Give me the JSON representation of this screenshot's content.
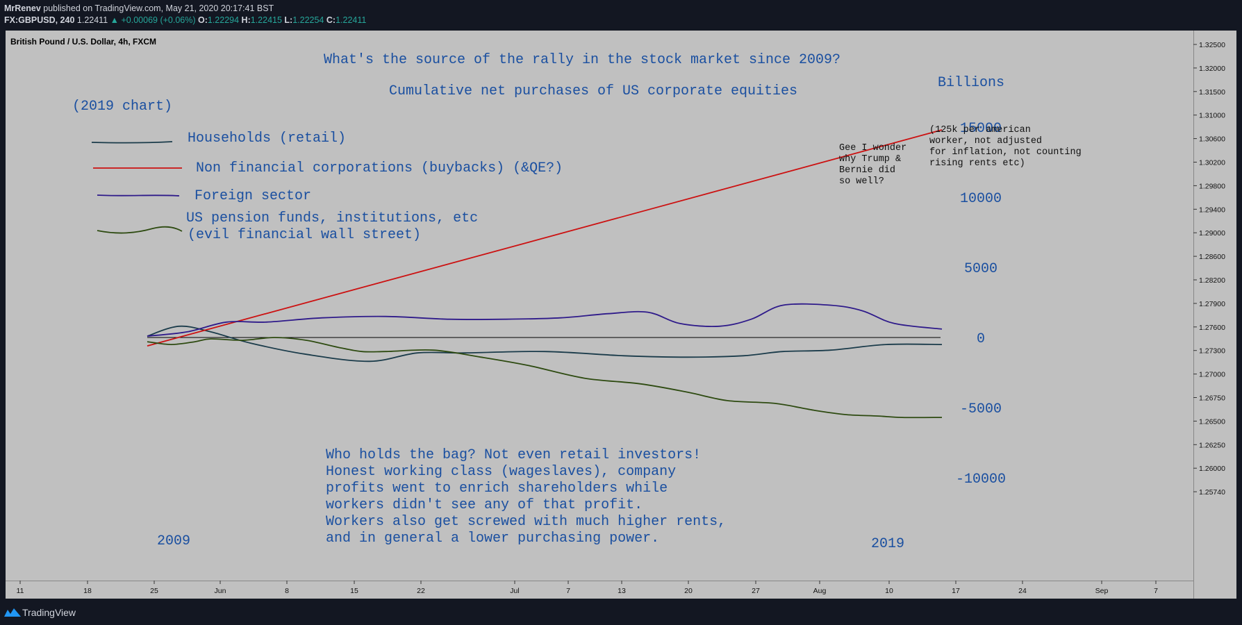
{
  "header": {
    "author": "MrRenev",
    "published": " published on TradingView.com, May 21, 2020 20:17:41 BST",
    "symbol": "FX:GBPUSD, 240",
    "price": " 1.22411",
    "change": "▲ +0.00069 (+0.06%)",
    "o_label": " O:",
    "o_val": "1.22294",
    "h_label": " H:",
    "h_val": "1.22415",
    "l_label": " L:",
    "l_val": "1.22254",
    "c_label": " C:",
    "c_val": "1.22411"
  },
  "footer": {
    "logo_text": "TradingView"
  },
  "colors": {
    "background": "#c0c0c0",
    "text_blue": "#1a4fa0",
    "households": "#1a3b4a",
    "nonfinancial": "#cc1111",
    "foreign": "#2e1a8a",
    "pension": "#2d4a10"
  },
  "chart_data": {
    "type": "line",
    "title": "What's the source of the rally in the stock market since 2009?",
    "subtitle": "Cumulative net purchases of US corporate equities",
    "note": "(2019 chart)",
    "pair_label": "British Pound / U.S. Dollar, 4h, FXCM",
    "unit_label": "Billions",
    "left_year": "2009",
    "right_year": "2019",
    "ylim": [
      -13000,
      17500
    ],
    "value_axis": [
      {
        "value": 15000,
        "label": "15000"
      },
      {
        "value": 10000,
        "label": "10000"
      },
      {
        "value": 5000,
        "label": "5000"
      },
      {
        "value": 0,
        "label": "0"
      },
      {
        "value": -5000,
        "label": "-5000"
      },
      {
        "value": -10000,
        "label": "-10000"
      }
    ],
    "x_range": [
      0,
      1
    ],
    "series": [
      {
        "name": "Households (retail)",
        "color": "#1a3b4a",
        "x": [
          0,
          0.04,
          0.08,
          0.13,
          0.2,
          0.28,
          0.34,
          0.4,
          0.5,
          0.6,
          0.68,
          0.75,
          0.8,
          0.86,
          0.93,
          1.0
        ],
        "y": [
          100,
          800,
          400,
          -400,
          -1200,
          -1700,
          -1100,
          -1100,
          -1000,
          -1300,
          -1400,
          -1300,
          -1000,
          -900,
          -500,
          -500
        ]
      },
      {
        "name": "Non financial corporations (buybacks) (&QE?)",
        "color": "#cc1111",
        "x": [
          0,
          1.0
        ],
        "y": [
          -600,
          14800
        ]
      },
      {
        "name": "Foreign sector",
        "color": "#2e1a8a",
        "x": [
          0,
          0.05,
          0.1,
          0.15,
          0.22,
          0.3,
          0.38,
          0.45,
          0.52,
          0.58,
          0.63,
          0.67,
          0.72,
          0.76,
          0.8,
          0.86,
          0.9,
          0.94,
          1.0
        ],
        "y": [
          100,
          400,
          1100,
          1100,
          1400,
          1500,
          1300,
          1300,
          1400,
          1700,
          1800,
          1000,
          800,
          1300,
          2300,
          2300,
          1900,
          1000,
          600
        ]
      },
      {
        "name": "US pension funds, institutions, etc (evil financial wall street)",
        "color": "#2d4a10",
        "x": [
          0,
          0.03,
          0.06,
          0.08,
          0.12,
          0.16,
          0.2,
          0.24,
          0.27,
          0.3,
          0.36,
          0.42,
          0.48,
          0.55,
          0.62,
          0.68,
          0.73,
          0.79,
          0.84,
          0.88,
          0.92,
          0.95,
          1.0
        ],
        "y": [
          -300,
          -500,
          -300,
          -100,
          -200,
          0,
          -200,
          -700,
          -1000,
          -1000,
          -900,
          -1400,
          -2000,
          -2900,
          -3300,
          -3900,
          -4500,
          -4700,
          -5200,
          -5500,
          -5600,
          -5700,
          -5700
        ]
      }
    ],
    "legend": [
      {
        "label": "Households (retail)",
        "color": "#1a3b4a"
      },
      {
        "label": "Non financial corporations (buybacks) (&QE?)",
        "color": "#cc1111"
      },
      {
        "label": "Foreign sector",
        "color": "#2e1a8a"
      },
      {
        "label": "US pension funds, institutions, etc",
        "label2": "(evil financial wall street)",
        "color": "#2d4a10"
      }
    ],
    "annotations": {
      "wonder": [
        "Gee I wonder",
        "why Trump &",
        "Bernie did",
        "so well?"
      ],
      "per_worker": [
        "(125k per american",
        "worker, not adjusted",
        "for inflation, not counting",
        "rising rents etc)"
      ],
      "bag": [
        "Who holds the bag? Not even retail investors!",
        "Honest working class (wageslaves), company",
        "profits went to enrich shareholders while",
        "workers didn't see any of that profit.",
        "Workers also get screwed with much higher rents,",
        "and in general a lower purchasing power."
      ]
    },
    "price_axis": [
      "1.32500",
      "1.32000",
      "1.31500",
      "1.31000",
      "1.30600",
      "1.30200",
      "1.29800",
      "1.29400",
      "1.29000",
      "1.28600",
      "1.28200",
      "1.27900",
      "1.27600",
      "1.27300",
      "1.27000",
      "1.26750",
      "1.26500",
      "1.26250",
      "1.26000",
      "1.25740"
    ],
    "time_axis": [
      "11",
      "18",
      "25",
      "Jun",
      "8",
      "15",
      "22",
      "Jul",
      "7",
      "13",
      "20",
      "27",
      "Aug",
      "10",
      "17",
      "24",
      "Sep",
      "7"
    ]
  }
}
